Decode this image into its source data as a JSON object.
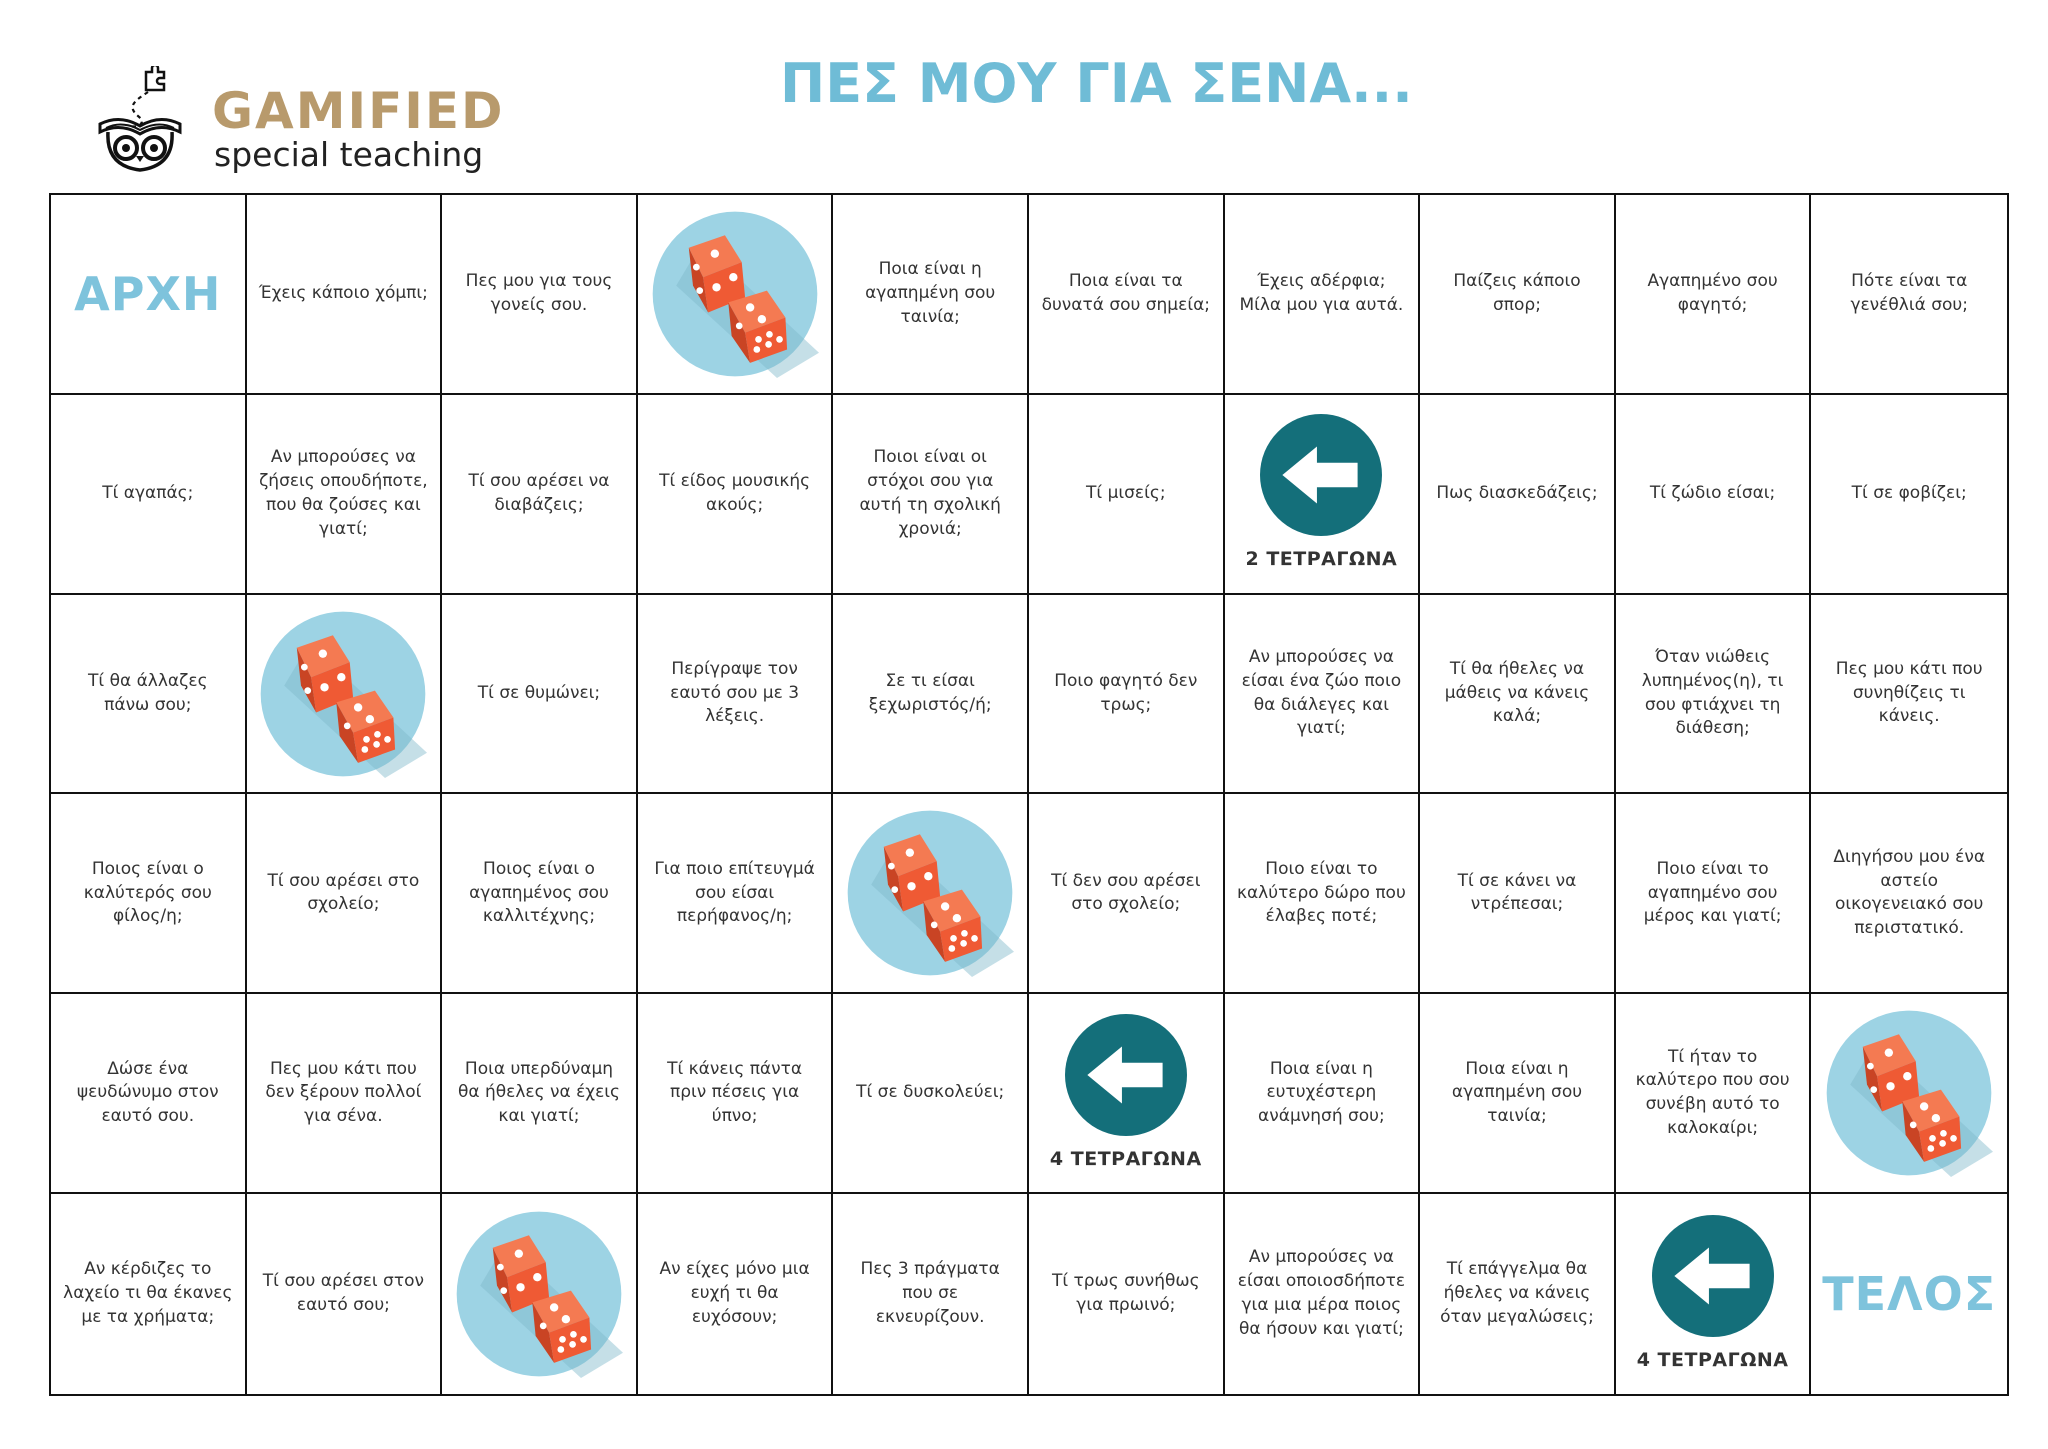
{
  "header": {
    "logo_word": "GAMIFIED",
    "logo_sub": "special teaching",
    "title": "ΠΕΣ ΜΟΥ ΓΙΑ ΣΕΝΑ..."
  },
  "colors": {
    "title": "#6fbcd6",
    "logo_gold": "#b89a6c",
    "dice_circle": "#9dd3e4",
    "dice_red": "#ef5a34",
    "arrow_teal": "#146f7a",
    "big_label": "#7ec3dc"
  },
  "board": {
    "rows": [
      [
        {
          "type": "big",
          "text": "ΑΡΧΗ"
        },
        {
          "type": "text",
          "text": "Έχεις κάποιο χόμπι;"
        },
        {
          "type": "text",
          "text": "Πες μου για τους γονείς σου."
        },
        {
          "type": "dice",
          "icon": "dice-icon"
        },
        {
          "type": "text",
          "text": "Ποια είναι η αγαπημένη σου ταινία;"
        },
        {
          "type": "text",
          "text": "Ποια είναι τα δυνατά σου σημεία;"
        },
        {
          "type": "text",
          "text": "Έχεις αδέρφια; Μίλα μου για αυτά."
        },
        {
          "type": "text",
          "text": "Παίζεις κάποιο σπορ;"
        },
        {
          "type": "text",
          "text": "Αγαπημένο σου φαγητό;"
        },
        {
          "type": "text",
          "text": "Πότε είναι τα γενέθλιά σου;"
        }
      ],
      [
        {
          "type": "text",
          "text": "Τί αγαπάς;"
        },
        {
          "type": "text",
          "text": "Αν μπορούσες να ζήσεις οπουδήποτε, που θα ζούσες και γιατί;"
        },
        {
          "type": "text",
          "text": "Τί σου αρέσει να διαβάζεις;"
        },
        {
          "type": "text",
          "text": "Τί είδος μουσικής ακούς;"
        },
        {
          "type": "text",
          "text": "Ποιοι είναι οι στόχοι σου για αυτή τη σχολική χρονιά;"
        },
        {
          "type": "text",
          "text": "Τί μισείς;"
        },
        {
          "type": "arrow",
          "icon": "arrow-left-icon",
          "label": "2 ΤΕΤΡΑΓΩΝΑ"
        },
        {
          "type": "text",
          "text": "Πως διασκεδάζεις;"
        },
        {
          "type": "text",
          "text": "Τί ζώδιο είσαι;"
        },
        {
          "type": "text",
          "text": "Τί σε φοβίζει;"
        }
      ],
      [
        {
          "type": "text",
          "text": "Τί θα άλλαζες πάνω σου;"
        },
        {
          "type": "dice",
          "icon": "dice-icon"
        },
        {
          "type": "text",
          "text": "Τί σε θυμώνει;"
        },
        {
          "type": "text",
          "text": "Περίγραψε τον εαυτό σου με 3 λέξεις."
        },
        {
          "type": "text",
          "text": "Σε τι είσαι ξεχωριστός/ή;"
        },
        {
          "type": "text",
          "text": "Ποιο φαγητό δεν τρως;"
        },
        {
          "type": "text",
          "text": "Αν μπορούσες να είσαι ένα ζώο ποιο θα διάλεγες και γιατί;"
        },
        {
          "type": "text",
          "text": "Τί θα ήθελες να μάθεις να κάνεις καλά;"
        },
        {
          "type": "text",
          "text": "Όταν νιώθεις λυπημένος(η), τι σου φτιάχνει τη διάθεση;"
        },
        {
          "type": "text",
          "text": "Πες μου κάτι που συνηθίζεις τι κάνεις."
        }
      ],
      [
        {
          "type": "text",
          "text": "Ποιος είναι ο καλύτερός σου φίλος/η;"
        },
        {
          "type": "text",
          "text": "Τί σου αρέσει στο σχολείο;"
        },
        {
          "type": "text",
          "text": "Ποιος είναι ο αγαπημένος σου καλλιτέχνης;"
        },
        {
          "type": "text",
          "text": "Για ποιο επίτευγμά σου είσαι περήφανος/η;"
        },
        {
          "type": "dice",
          "icon": "dice-icon"
        },
        {
          "type": "text",
          "text": "Τί  δεν σου αρέσει στο σχολείο;"
        },
        {
          "type": "text",
          "text": "Ποιο είναι το καλύτερο δώρο που έλαβες ποτέ;"
        },
        {
          "type": "text",
          "text": "Τί σε κάνει να ντρέπεσαι;"
        },
        {
          "type": "text",
          "text": "Ποιο είναι το αγαπημένο σου μέρος και γιατί;"
        },
        {
          "type": "text",
          "text": "Διηγήσου μου ένα αστείο οικογενειακό σου περιστατικό."
        }
      ],
      [
        {
          "type": "text",
          "text": "Δώσε ένα ψευδώνυμο στον εαυτό σου."
        },
        {
          "type": "text",
          "text": "Πες μου κάτι που δεν ξέρουν πολλοί για σένα."
        },
        {
          "type": "text",
          "text": "Ποια υπερδύναμη θα ήθελες να έχεις και γιατί;"
        },
        {
          "type": "text",
          "text": "Τί κάνεις πάντα πριν πέσεις για ύπνο;"
        },
        {
          "type": "text",
          "text": "Τί σε δυσκολεύει;"
        },
        {
          "type": "arrow",
          "icon": "arrow-left-icon",
          "label": "4 ΤΕΤΡΑΓΩΝΑ"
        },
        {
          "type": "text",
          "text": "Ποια είναι η ευτυχέστερη ανάμνησή σου;"
        },
        {
          "type": "text",
          "text": "Ποια είναι η αγαπημένη σου ταινία;"
        },
        {
          "type": "text",
          "text": "Τί ήταν το καλύτερο που σου συνέβη αυτό το καλοκαίρι;"
        },
        {
          "type": "dice",
          "icon": "dice-icon"
        }
      ],
      [
        {
          "type": "text",
          "text": "Αν κέρδιζες το λαχείο τι θα έκανες με τα χρήματα;"
        },
        {
          "type": "text",
          "text": "Τί σου αρέσει στον εαυτό σου;"
        },
        {
          "type": "dice",
          "icon": "dice-icon"
        },
        {
          "type": "text",
          "text": "Αν είχες μόνο μια ευχή τι θα ευχόσουν;"
        },
        {
          "type": "text",
          "text": "Πες 3 πράγματα που σε εκνευρίζουν."
        },
        {
          "type": "text",
          "text": "Τί τρως συνήθως για πρωινό;"
        },
        {
          "type": "text",
          "text": "Αν μπορούσες να είσαι οποιοσδήποτε για μια μέρα ποιος θα ήσουν και γιατί;"
        },
        {
          "type": "text",
          "text": "Τί επάγγελμα θα ήθελες να κάνεις όταν μεγαλώσεις;"
        },
        {
          "type": "arrow",
          "icon": "arrow-left-icon",
          "label": "4 ΤΕΤΡΑΓΩΝΑ"
        },
        {
          "type": "big",
          "text": "ΤΕΛΟΣ"
        }
      ]
    ]
  }
}
